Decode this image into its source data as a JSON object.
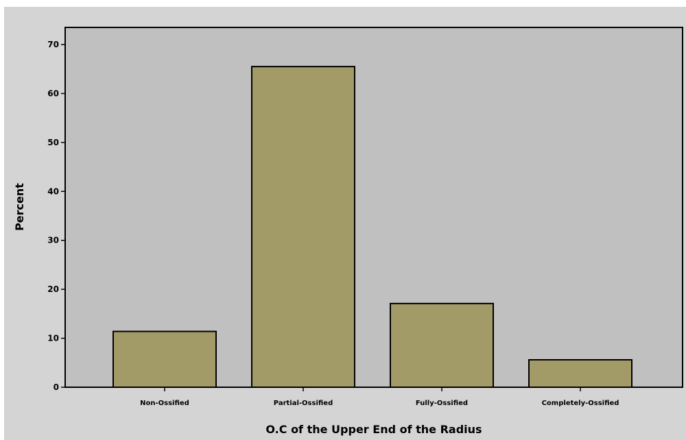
{
  "chart_data": {
    "type": "bar",
    "title": "",
    "xlabel": "O.C of the Upper End of the Radius",
    "ylabel": "Percent",
    "categories": [
      "Non-Ossified",
      "Partial-Ossified",
      "Fully-Ossified",
      "Completely-Ossified"
    ],
    "values": [
      11.4,
      65.5,
      17.1,
      5.6
    ],
    "ylim": [
      0,
      73.5
    ],
    "yticks": [
      0,
      10,
      20,
      30,
      40,
      50,
      60,
      70
    ],
    "grid": false,
    "legend": "none",
    "colors": {
      "bar_fill": "#a39b67",
      "bar_stroke": "#000000",
      "plot_background": "#c0c0c0",
      "figure_background": "#d4d4d4"
    }
  }
}
